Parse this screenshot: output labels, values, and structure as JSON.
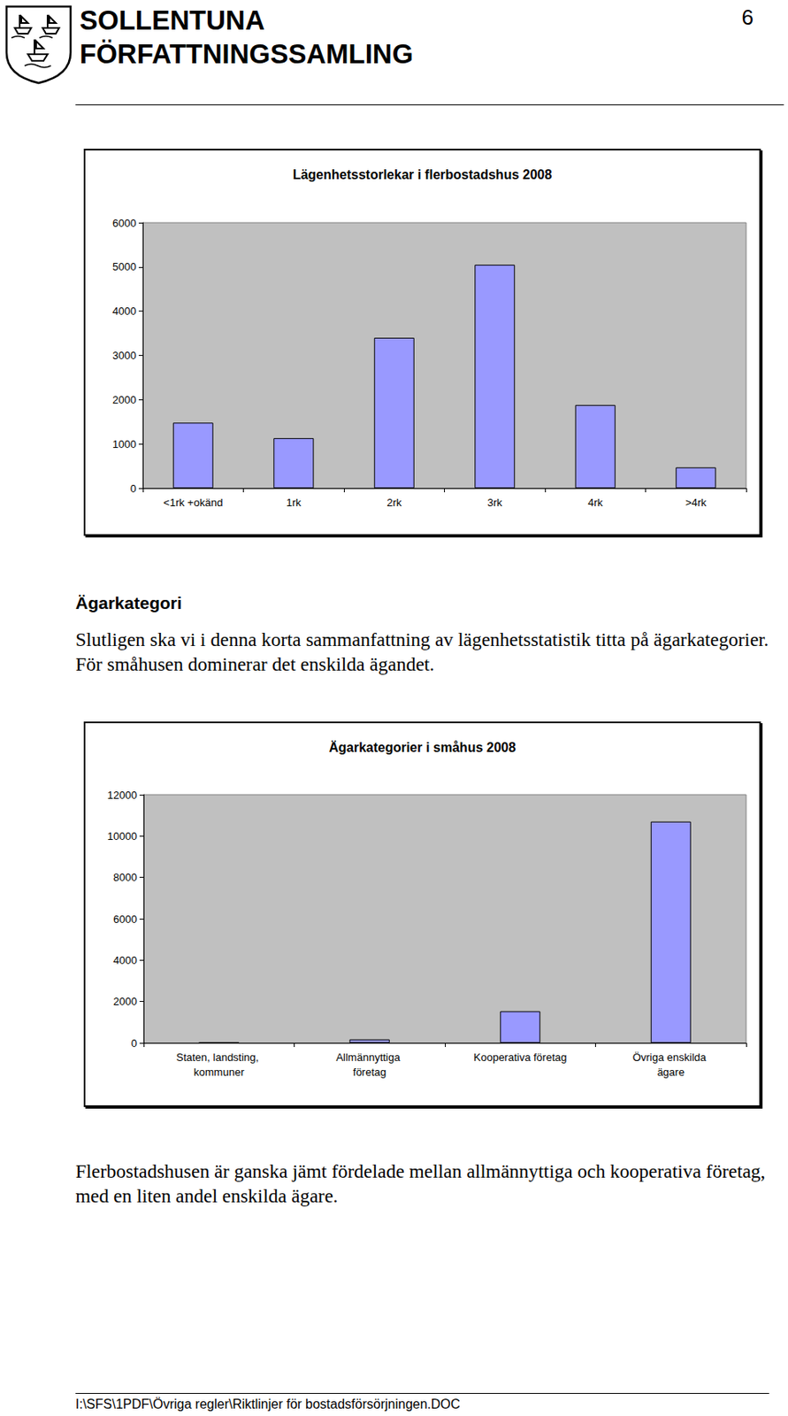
{
  "header": {
    "title_lines": [
      "SOLLENTUNA",
      "FÖRFATTNINGSSAMLING"
    ],
    "page_number": "6"
  },
  "chart_data": [
    {
      "type": "bar",
      "title": "Lägenhetsstorlekar i flerbostadshus 2008",
      "categories": [
        "<1rk +okänd",
        "1rk",
        "2rk",
        "3rk",
        "4rk",
        ">4rk"
      ],
      "values": [
        1480,
        1130,
        3400,
        5050,
        1880,
        470
      ],
      "color": "#9999ff",
      "ylim": [
        0,
        6000
      ],
      "yticks": [
        0,
        1000,
        2000,
        3000,
        4000,
        5000,
        6000
      ],
      "grid": false
    },
    {
      "type": "bar",
      "title": "Ägarkategorier i småhus 2008",
      "categories": [
        "Staten, landsting, kommuner",
        "Allmännyttiga företag",
        "Kooperativa företag",
        "Övriga enskilda ägare"
      ],
      "values": [
        30,
        170,
        1530,
        10700
      ],
      "color": "#9999ff",
      "ylim": [
        0,
        12000
      ],
      "yticks": [
        0,
        2000,
        4000,
        6000,
        8000,
        10000,
        12000
      ],
      "grid": false
    }
  ],
  "heading": "Ägarkategori",
  "paragraph_1": "Slutligen ska vi i denna korta sammanfattning av lägenhetsstatistik titta på ägarkategorier. För småhusen dominerar det enskilda ägandet.",
  "paragraph_2": "Flerbostadshusen är ganska jämt fördelade mellan allmännyttiga och kooperativa företag, med en liten andel enskilda ägare.",
  "footer": "I:\\SFS\\1PDF\\Övriga regler\\Riktlinjer för bostadsförsörjningen.DOC"
}
